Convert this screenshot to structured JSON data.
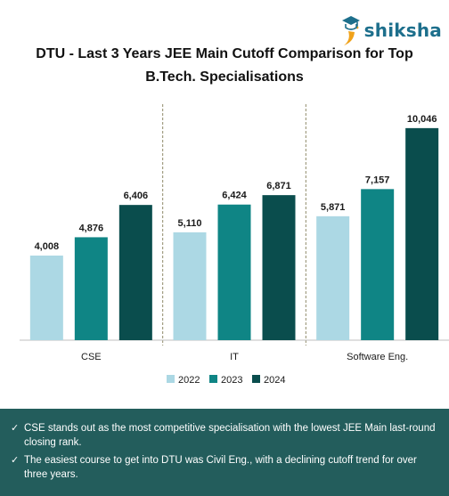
{
  "brand": {
    "name": "shiksha"
  },
  "chart_data": {
    "type": "bar",
    "title": "DTU - Last 3 Years JEE Main Cutoff Comparison for Top B.Tech. Specialisations",
    "categories": [
      "CSE",
      "IT",
      "Software Eng."
    ],
    "series": [
      {
        "name": "2022",
        "values": [
          4008,
          5110,
          5871
        ],
        "labels": [
          "4,008",
          "5,110",
          "5,871"
        ],
        "color": "#acd8e4"
      },
      {
        "name": "2023",
        "values": [
          4876,
          6424,
          7157
        ],
        "labels": [
          "4,876",
          "6,424",
          "7,157"
        ],
        "color": "#0f8585"
      },
      {
        "name": "2024",
        "values": [
          6406,
          6871,
          10046
        ],
        "labels": [
          "6,406",
          "6,871",
          "10,046"
        ],
        "color": "#0a4d4d"
      }
    ],
    "ylim": [
      0,
      10800
    ],
    "grid": false,
    "legend": "bottom"
  },
  "notes": [
    "CSE stands out as the most competitive specialisation with the lowest JEE Main last-round closing rank.",
    "The easiest course to get into DTU was Civil Eng., with a declining cutoff trend for over three years."
  ],
  "note_check": "✓"
}
